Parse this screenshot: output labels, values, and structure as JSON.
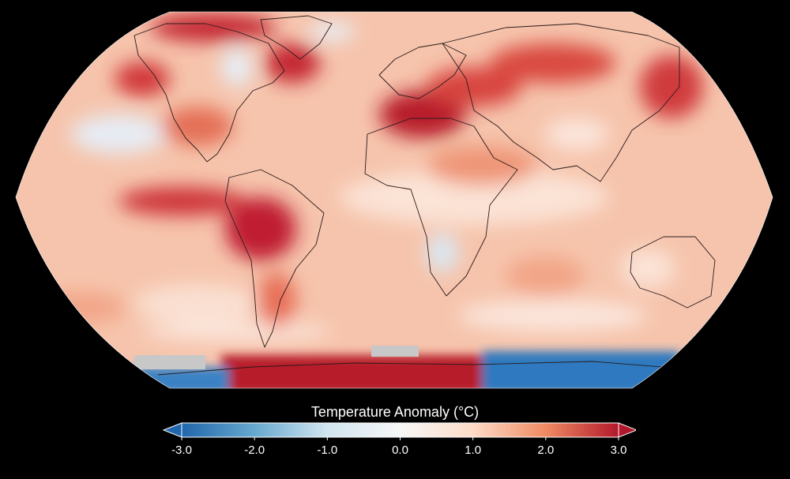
{
  "map": {
    "projection": "robinson",
    "background": "#000000",
    "land_outline_color": "#2a1a1a",
    "no_data_color": "#c8c8c8"
  },
  "legend": {
    "title": "Temperature Anomaly (°C)",
    "min": -3.0,
    "max": 3.0,
    "extend": "both",
    "tick_labels": [
      "-3.0",
      "-2.0",
      "-1.0",
      "0.0",
      "1.0",
      "2.0",
      "3.0"
    ],
    "colors": {
      "cold_extreme": "#2166ac",
      "cold": "#67a9cf",
      "cool": "#d1e5f0",
      "neutral": "#f7f7f7",
      "warm": "#fddbc7",
      "hot": "#ef8a62",
      "hot_extreme": "#b2182b"
    }
  }
}
